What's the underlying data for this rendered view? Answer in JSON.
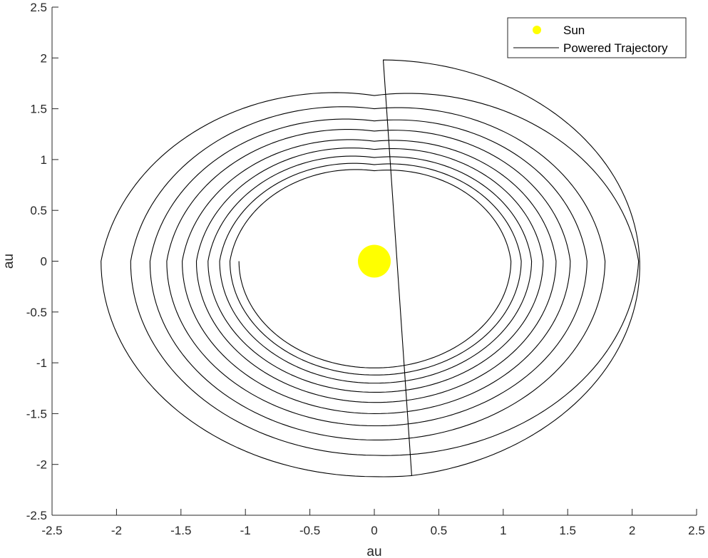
{
  "chart_data": {
    "type": "line",
    "title": "",
    "xlabel": "au",
    "ylabel": "au",
    "xlim": [
      -2.5,
      2.5
    ],
    "ylim": [
      -2.5,
      2.5
    ],
    "xticks": [
      -2.5,
      -2,
      -1.5,
      -1,
      -0.5,
      0,
      0.5,
      1,
      1.5,
      2,
      2.5
    ],
    "yticks": [
      -2.5,
      -2,
      -1.5,
      -1,
      -0.5,
      0,
      0.5,
      1,
      1.5,
      2,
      2.5
    ],
    "xtick_labels": [
      "-2.5",
      "-2",
      "-1.5",
      "-1",
      "-0.5",
      "0",
      "0.5",
      "1",
      "1.5",
      "2",
      "2.5"
    ],
    "ytick_labels": [
      "-2.5",
      "-2",
      "-1.5",
      "-1",
      "-0.5",
      "0",
      "0.5",
      "1",
      "1.5",
      "2",
      "2.5"
    ],
    "grid": false,
    "legend_position": "top-right",
    "series": [
      {
        "name": "Sun",
        "kind": "point",
        "color": "#ffff00",
        "points": [
          [
            0,
            0
          ]
        ]
      },
      {
        "name": "Powered Trajectory",
        "kind": "spiral",
        "color": "#000000",
        "start": [
          -1.05,
          0
        ],
        "end": [
          0.29,
          -2.11
        ],
        "radius_at_x_neg": [
          1.05,
          1.12,
          1.2,
          1.29,
          1.38,
          1.49,
          1.61,
          1.74,
          1.89,
          2.12
        ],
        "radius_at_x_pos": [
          1.06,
          1.14,
          1.22,
          1.31,
          1.41,
          1.52,
          1.65,
          1.79,
          2.05
        ],
        "radius_at_y_pos": [
          0.89,
          0.95,
          1.02,
          1.1,
          1.18,
          1.28,
          1.38,
          1.5,
          1.63,
          1.98
        ],
        "radius_at_y_neg": [
          1.05,
          1.12,
          1.2,
          1.29,
          1.39,
          1.5,
          1.62,
          1.76,
          1.91,
          2.12
        ]
      }
    ]
  }
}
